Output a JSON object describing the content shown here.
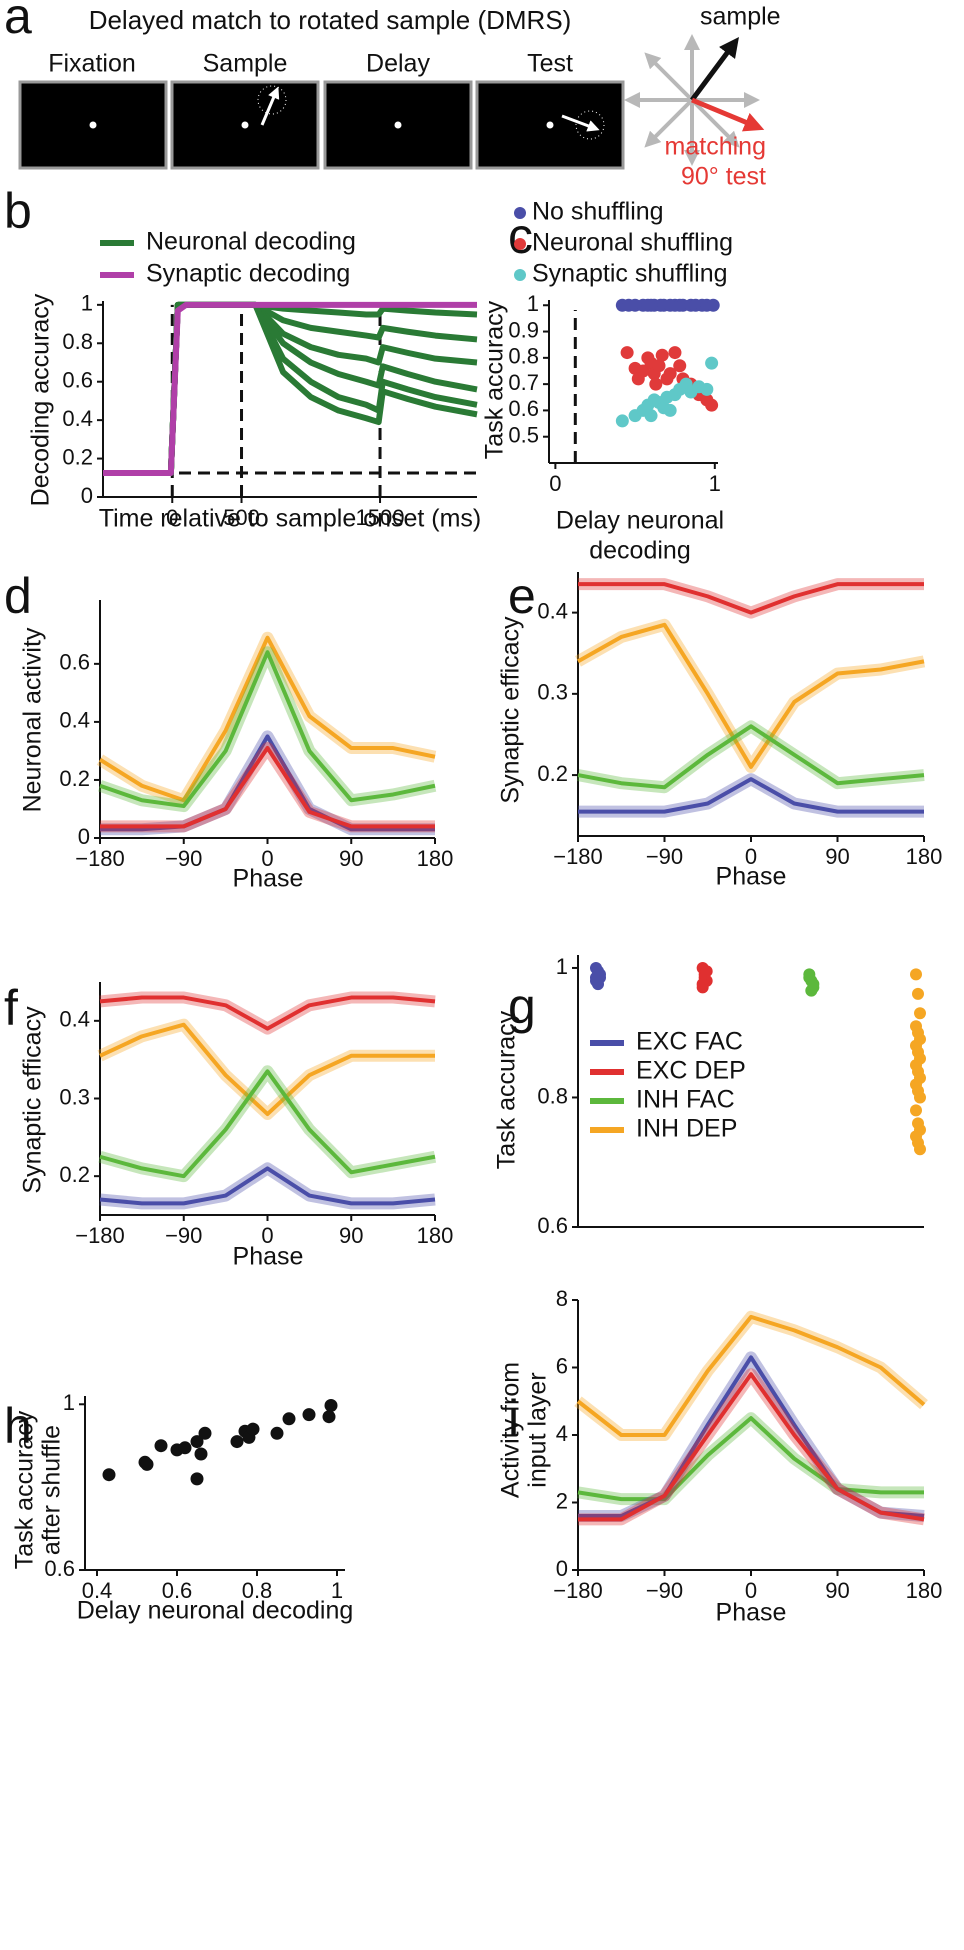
{
  "diagram": {
    "panel_label": "a",
    "title": "Delayed match to rotated sample (DMRS)",
    "epochs": [
      "Fixation",
      "Sample",
      "Delay",
      "Test"
    ],
    "arrow_labels": [
      "sample",
      "matching",
      "90° test"
    ]
  },
  "chart_data": [
    {
      "type": "line",
      "panel_label": "b",
      "xlabel": "Time relative to sample onset (ms)",
      "ylabel": "Decoding accuracy",
      "x": [
        -500,
        -10,
        40,
        100,
        500,
        600,
        800,
        1000,
        1200,
        1400,
        1490,
        1520,
        1700,
        1900,
        2200
      ],
      "series": [
        {
          "name": "Neuronal decoding",
          "color": "#2a7a35",
          "values": [
            [
              0.125,
              0.125,
              1,
              1,
              1,
              1,
              0.98,
              0.97,
              0.96,
              0.95,
              0.95,
              0.98,
              0.97,
              0.96,
              0.95
            ],
            [
              0.125,
              0.125,
              1,
              1,
              1,
              1,
              0.92,
              0.88,
              0.86,
              0.84,
              0.83,
              0.88,
              0.86,
              0.84,
              0.82
            ],
            [
              0.125,
              0.125,
              1,
              1,
              1,
              1,
              0.85,
              0.78,
              0.74,
              0.72,
              0.7,
              0.78,
              0.75,
              0.72,
              0.7
            ],
            [
              0.125,
              0.125,
              1,
              1,
              1,
              1,
              0.8,
              0.7,
              0.64,
              0.6,
              0.58,
              0.68,
              0.64,
              0.6,
              0.56
            ],
            [
              0.125,
              0.125,
              1,
              1,
              1,
              1,
              0.72,
              0.6,
              0.52,
              0.48,
              0.45,
              0.6,
              0.56,
              0.52,
              0.48
            ],
            [
              0.125,
              0.125,
              1,
              1,
              1,
              1,
              0.65,
              0.52,
              0.45,
              0.41,
              0.39,
              0.55,
              0.51,
              0.47,
              0.43
            ]
          ]
        },
        {
          "name": "Synaptic decoding",
          "color": "#b03fa8",
          "values": [
            0.125,
            0.125,
            0.97,
            1,
            1,
            1,
            1,
            1,
            1,
            1,
            1,
            1,
            1,
            1,
            1
          ]
        }
      ],
      "xlim": [
        -500,
        2200
      ],
      "ylim": [
        0,
        1.02
      ],
      "xticks": [
        0,
        500,
        1500
      ],
      "yticks": [
        0,
        0.2,
        0.4,
        0.6,
        0.8,
        1
      ],
      "event_lines": [
        0,
        500,
        1500
      ],
      "chance_level": 0.125
    },
    {
      "type": "scatter",
      "panel_label": "c",
      "xlabel": [
        "Delay neuronal",
        "decoding"
      ],
      "ylabel": "Task accuracy",
      "series": [
        {
          "name": "No shuffling",
          "color": "#4a4ea8",
          "x": [
            0.42,
            0.46,
            0.5,
            0.55,
            0.58,
            0.6,
            0.62,
            0.66,
            0.68,
            0.72,
            0.75,
            0.78,
            0.8,
            0.85,
            0.88,
            0.92,
            0.95,
            0.99
          ],
          "values": [
            1,
            1,
            1,
            1,
            1,
            1,
            1,
            1,
            1,
            1,
            1,
            1,
            1,
            1,
            1,
            1,
            1,
            1
          ]
        },
        {
          "name": "Neuronal shuffling",
          "color": "#e03a3a",
          "x": [
            0.45,
            0.5,
            0.52,
            0.55,
            0.58,
            0.6,
            0.62,
            0.63,
            0.65,
            0.67,
            0.7,
            0.72,
            0.75,
            0.78,
            0.8,
            0.85,
            0.9,
            0.95,
            0.98
          ],
          "values": [
            0.82,
            0.76,
            0.72,
            0.75,
            0.8,
            0.78,
            0.74,
            0.7,
            0.77,
            0.81,
            0.72,
            0.74,
            0.82,
            0.77,
            0.72,
            0.7,
            0.66,
            0.64,
            0.62
          ]
        },
        {
          "name": "Synaptic shuffling",
          "color": "#5fc8c8",
          "x": [
            0.42,
            0.5,
            0.55,
            0.58,
            0.6,
            0.62,
            0.65,
            0.68,
            0.7,
            0.72,
            0.75,
            0.78,
            0.82,
            0.85,
            0.9,
            0.95,
            0.98
          ],
          "values": [
            0.56,
            0.58,
            0.6,
            0.62,
            0.58,
            0.64,
            0.63,
            0.61,
            0.65,
            0.6,
            0.66,
            0.68,
            0.7,
            0.67,
            0.69,
            0.68,
            0.78
          ]
        }
      ],
      "xlim": [
        -0.04,
        1.02
      ],
      "ylim": [
        0.4,
        1.02
      ],
      "xticks": [
        0,
        1
      ],
      "yticks": [
        0.5,
        0.6,
        0.7,
        0.8,
        0.9,
        1
      ],
      "event_lines": [
        0.125
      ]
    },
    {
      "type": "line",
      "panel_label": "d",
      "xlabel": "Phase",
      "ylabel": "Neuronal activity",
      "x": [
        -180,
        -135,
        -90,
        -45,
        0,
        45,
        90,
        135,
        180
      ],
      "series": [
        {
          "name": "INH DEP",
          "color": "#f5a623",
          "values": [
            0.27,
            0.18,
            0.13,
            0.37,
            0.69,
            0.42,
            0.31,
            0.31,
            0.28
          ]
        },
        {
          "name": "INH FAC",
          "color": "#5cb83c",
          "values": [
            0.18,
            0.13,
            0.11,
            0.3,
            0.64,
            0.3,
            0.13,
            0.15,
            0.18
          ]
        },
        {
          "name": "EXC FAC",
          "color": "#4a4ea8",
          "values": [
            0.03,
            0.03,
            0.04,
            0.1,
            0.35,
            0.1,
            0.03,
            0.03,
            0.03
          ]
        },
        {
          "name": "EXC DEP",
          "color": "#e03030",
          "values": [
            0.04,
            0.04,
            0.04,
            0.1,
            0.31,
            0.09,
            0.04,
            0.04,
            0.04
          ]
        }
      ],
      "xlim": [
        -180,
        180
      ],
      "ylim": [
        0,
        0.82
      ],
      "xticks": [
        {
          "value": -180,
          "label": "−180"
        },
        {
          "value": -90,
          "label": "−90"
        },
        0,
        90,
        180
      ],
      "yticks": [
        0,
        0.2,
        0.4,
        0.6
      ]
    },
    {
      "type": "line",
      "panel_label": "e",
      "xlabel": "Phase",
      "ylabel": "Synaptic efficacy",
      "x": [
        -180,
        -135,
        -90,
        -45,
        0,
        45,
        90,
        135,
        180
      ],
      "series": [
        {
          "name": "EXC DEP",
          "color": "#e03030",
          "values": [
            0.435,
            0.435,
            0.435,
            0.42,
            0.4,
            0.42,
            0.435,
            0.435,
            0.435
          ]
        },
        {
          "name": "INH DEP",
          "color": "#f5a623",
          "values": [
            0.34,
            0.37,
            0.385,
            0.3,
            0.21,
            0.29,
            0.325,
            0.33,
            0.34
          ]
        },
        {
          "name": "INH FAC",
          "color": "#5cb83c",
          "values": [
            0.2,
            0.19,
            0.185,
            0.225,
            0.26,
            0.225,
            0.19,
            0.195,
            0.2
          ]
        },
        {
          "name": "EXC FAC",
          "color": "#4a4ea8",
          "values": [
            0.155,
            0.155,
            0.155,
            0.165,
            0.195,
            0.165,
            0.155,
            0.155,
            0.155
          ]
        }
      ],
      "xlim": [
        -180,
        180
      ],
      "ylim": [
        0.125,
        0.45
      ],
      "xticks": [
        {
          "value": -180,
          "label": "−180"
        },
        {
          "value": -90,
          "label": "−90"
        },
        0,
        90,
        180
      ],
      "yticks": [
        0.2,
        0.3,
        0.4
      ]
    },
    {
      "type": "line",
      "panel_label": "f",
      "xlabel": "Phase",
      "ylabel": "Synaptic efficacy",
      "x": [
        -180,
        -135,
        -90,
        -45,
        0,
        45,
        90,
        135,
        180
      ],
      "series": [
        {
          "name": "EXC DEP",
          "color": "#e03030",
          "values": [
            0.425,
            0.43,
            0.43,
            0.42,
            0.39,
            0.42,
            0.43,
            0.43,
            0.425
          ]
        },
        {
          "name": "INH DEP",
          "color": "#f5a623",
          "values": [
            0.355,
            0.38,
            0.395,
            0.33,
            0.28,
            0.33,
            0.355,
            0.355,
            0.355
          ]
        },
        {
          "name": "INH FAC",
          "color": "#5cb83c",
          "values": [
            0.225,
            0.21,
            0.2,
            0.26,
            0.335,
            0.26,
            0.205,
            0.215,
            0.225
          ]
        },
        {
          "name": "EXC FAC",
          "color": "#4a4ea8",
          "values": [
            0.17,
            0.165,
            0.165,
            0.175,
            0.21,
            0.175,
            0.165,
            0.165,
            0.17
          ]
        }
      ],
      "xlim": [
        -180,
        180
      ],
      "ylim": [
        0.15,
        0.45
      ],
      "xticks": [
        {
          "value": -180,
          "label": "−180"
        },
        {
          "value": -90,
          "label": "−90"
        },
        0,
        90,
        180
      ],
      "yticks": [
        0.2,
        0.3,
        0.4
      ]
    },
    {
      "type": "strip",
      "panel_label": "g",
      "ylabel": "Task accuracy",
      "series": [
        {
          "name": "EXC FAC",
          "color": "#4a4ea8",
          "values": [
            1,
            0.99,
            0.985,
            0.98,
            0.995,
            0.99,
            0.985,
            0.975
          ]
        },
        {
          "name": "EXC DEP",
          "color": "#e03030",
          "values": [
            1,
            0.99,
            0.98,
            0.97,
            0.985,
            0.995,
            0.975
          ]
        },
        {
          "name": "INH FAC",
          "color": "#5cb83c",
          "values": [
            0.99,
            0.98,
            0.97,
            0.985,
            0.965,
            0.975
          ]
        },
        {
          "name": "INH DEP",
          "color": "#f5a623",
          "values": [
            0.99,
            0.96,
            0.93,
            0.91,
            0.9,
            0.89,
            0.88,
            0.87,
            0.86,
            0.85,
            0.84,
            0.83,
            0.82,
            0.81,
            0.8,
            0.78,
            0.76,
            0.75,
            0.74,
            0.73,
            0.72
          ]
        }
      ],
      "ylim": [
        0.6,
        1.02
      ],
      "yticks": [
        0.6,
        0.8,
        1
      ]
    },
    {
      "type": "scatter",
      "panel_label": "h",
      "xlabel": "Delay neuronal decoding",
      "ylabel": [
        "Task accuracy",
        "after shuffle"
      ],
      "series": [
        {
          "color": "#111111",
          "x": [
            0.43,
            0.52,
            0.525,
            0.56,
            0.6,
            0.62,
            0.65,
            0.66,
            0.65,
            0.67,
            0.75,
            0.77,
            0.78,
            0.79,
            0.85,
            0.88,
            0.93,
            0.98,
            0.985
          ],
          "values": [
            0.83,
            0.86,
            0.855,
            0.9,
            0.89,
            0.895,
            0.91,
            0.88,
            0.82,
            0.93,
            0.91,
            0.935,
            0.92,
            0.94,
            0.93,
            0.965,
            0.975,
            0.97,
            0.997
          ]
        }
      ],
      "xlim": [
        0.37,
        1.02
      ],
      "ylim": [
        0.6,
        1.02
      ],
      "xticks": [
        0.4,
        0.6,
        0.8,
        1
      ],
      "yticks": [
        0.6,
        1
      ]
    },
    {
      "type": "line",
      "panel_label": "i",
      "xlabel": "Phase",
      "ylabel": [
        "Activity from",
        "input layer"
      ],
      "x": [
        -180,
        -135,
        -90,
        -45,
        0,
        45,
        90,
        135,
        180
      ],
      "series": [
        {
          "name": "INH DEP",
          "color": "#f5a623",
          "values": [
            5,
            4,
            4,
            5.9,
            7.5,
            7.1,
            6.6,
            6,
            4.9
          ]
        },
        {
          "name": "INH FAC",
          "color": "#5cb83c",
          "values": [
            2.3,
            2.1,
            2.1,
            3.4,
            4.5,
            3.3,
            2.4,
            2.3,
            2.3
          ]
        },
        {
          "name": "EXC FAC",
          "color": "#4a4ea8",
          "values": [
            1.6,
            1.6,
            2.2,
            4.3,
            6.3,
            4.3,
            2.4,
            1.7,
            1.6
          ]
        },
        {
          "name": "EXC DEP",
          "color": "#e03030",
          "values": [
            1.5,
            1.5,
            2.2,
            4,
            5.8,
            4,
            2.4,
            1.7,
            1.5
          ]
        }
      ],
      "xlim": [
        -180,
        180
      ],
      "ylim": [
        0,
        8
      ],
      "xticks": [
        {
          "value": -180,
          "label": "−180"
        },
        {
          "value": -90,
          "label": "−90"
        },
        0,
        90,
        180
      ],
      "yticks": [
        0,
        2,
        4,
        6,
        8
      ]
    }
  ]
}
